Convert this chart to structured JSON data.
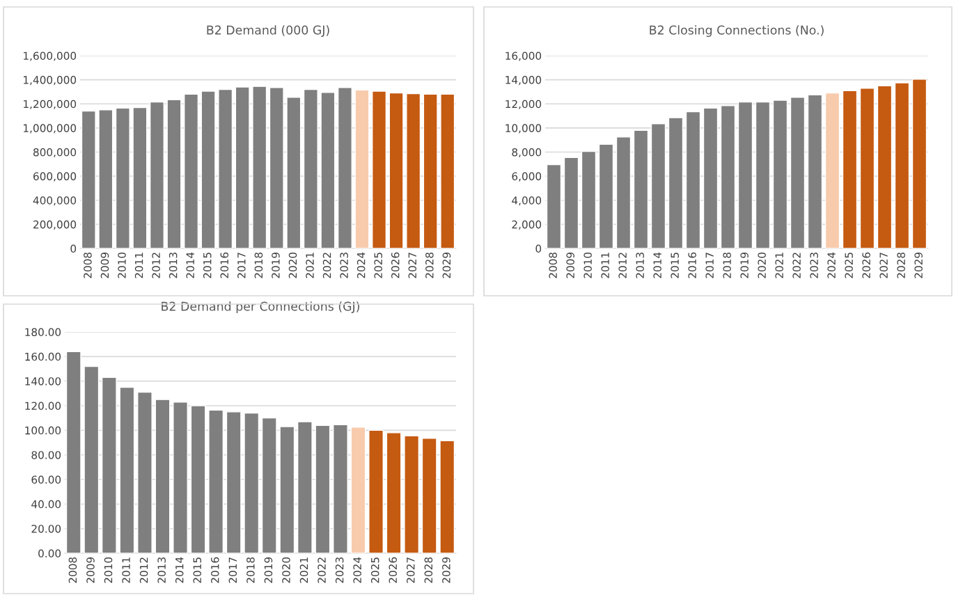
{
  "chart_data": [
    {
      "type": "bar",
      "title": "B2 Demand (000 GJ)",
      "categories": [
        "2008",
        "2009",
        "2010",
        "2011",
        "2012",
        "2013",
        "2014",
        "2015",
        "2016",
        "2017",
        "2018",
        "2019",
        "2020",
        "2021",
        "2022",
        "2023",
        "2024",
        "2025",
        "2026",
        "2027",
        "2028",
        "2029"
      ],
      "values": [
        1140000,
        1150000,
        1165000,
        1170000,
        1215000,
        1235000,
        1280000,
        1305000,
        1320000,
        1340000,
        1345000,
        1335000,
        1255000,
        1320000,
        1295000,
        1335000,
        1315000,
        1305000,
        1290000,
        1285000,
        1280000,
        1280000
      ],
      "colors": [
        "#7f7f7f",
        "#7f7f7f",
        "#7f7f7f",
        "#7f7f7f",
        "#7f7f7f",
        "#7f7f7f",
        "#7f7f7f",
        "#7f7f7f",
        "#7f7f7f",
        "#7f7f7f",
        "#7f7f7f",
        "#7f7f7f",
        "#7f7f7f",
        "#7f7f7f",
        "#7f7f7f",
        "#7f7f7f",
        "#f8cbad",
        "#c55a11",
        "#c55a11",
        "#c55a11",
        "#c55a11",
        "#c55a11"
      ],
      "ylim": [
        0,
        1600000
      ],
      "yticks": [
        0,
        {
          "value": 200000,
          "label": "200,000"
        },
        {
          "value": 400000,
          "label": "400,000"
        },
        {
          "value": 600000,
          "label": "600,000"
        },
        {
          "value": 800000,
          "label": "800,000"
        },
        {
          "value": 1000000,
          "label": "1,000,000"
        },
        {
          "value": 1200000,
          "label": "1,200,000"
        },
        {
          "value": 1400000,
          "label": "1,400,000"
        },
        {
          "value": 1600000,
          "label": "1,600,000"
        }
      ],
      "grid": "y",
      "legend": false
    },
    {
      "type": "bar",
      "title": "B2 Closing Connections (No.)",
      "categories": [
        "2008",
        "2009",
        "2010",
        "2011",
        "2012",
        "2013",
        "2014",
        "2015",
        "2016",
        "2017",
        "2018",
        "2019",
        "2020",
        "2021",
        "2022",
        "2023",
        "2024",
        "2025",
        "2026",
        "2027",
        "2028",
        "2029"
      ],
      "values": [
        6950,
        7550,
        8050,
        8650,
        9250,
        9800,
        10350,
        10850,
        11350,
        11650,
        11850,
        12150,
        12150,
        12300,
        12550,
        12750,
        12900,
        13100,
        13300,
        13500,
        13750,
        14050
      ],
      "colors": [
        "#7f7f7f",
        "#7f7f7f",
        "#7f7f7f",
        "#7f7f7f",
        "#7f7f7f",
        "#7f7f7f",
        "#7f7f7f",
        "#7f7f7f",
        "#7f7f7f",
        "#7f7f7f",
        "#7f7f7f",
        "#7f7f7f",
        "#7f7f7f",
        "#7f7f7f",
        "#7f7f7f",
        "#7f7f7f",
        "#f8cbad",
        "#c55a11",
        "#c55a11",
        "#c55a11",
        "#c55a11",
        "#c55a11"
      ],
      "ylim": [
        0,
        16000
      ],
      "yticks": [
        0,
        {
          "value": 2000,
          "label": "2,000"
        },
        {
          "value": 4000,
          "label": "4,000"
        },
        {
          "value": 6000,
          "label": "6,000"
        },
        {
          "value": 8000,
          "label": "8,000"
        },
        {
          "value": 10000,
          "label": "10,000"
        },
        {
          "value": 12000,
          "label": "12,000"
        },
        {
          "value": 14000,
          "label": "14,000"
        },
        {
          "value": 16000,
          "label": "16,000"
        }
      ],
      "grid": "y",
      "legend": false
    },
    {
      "type": "bar",
      "title": "B2 Demand per Connections (GJ)",
      "categories": [
        "2008",
        "2009",
        "2010",
        "2011",
        "2012",
        "2013",
        "2014",
        "2015",
        "2016",
        "2017",
        "2018",
        "2019",
        "2020",
        "2021",
        "2022",
        "2023",
        "2024",
        "2025",
        "2026",
        "2027",
        "2028",
        "2029"
      ],
      "values": [
        164,
        152,
        143,
        135,
        131,
        125,
        123,
        120,
        116.5,
        115,
        114,
        110,
        103,
        107,
        104,
        104.5,
        102.5,
        100,
        98,
        95.5,
        93.5,
        91.5
      ],
      "colors": [
        "#7f7f7f",
        "#7f7f7f",
        "#7f7f7f",
        "#7f7f7f",
        "#7f7f7f",
        "#7f7f7f",
        "#7f7f7f",
        "#7f7f7f",
        "#7f7f7f",
        "#7f7f7f",
        "#7f7f7f",
        "#7f7f7f",
        "#7f7f7f",
        "#7f7f7f",
        "#7f7f7f",
        "#7f7f7f",
        "#f8cbad",
        "#c55a11",
        "#c55a11",
        "#c55a11",
        "#c55a11",
        "#c55a11"
      ],
      "ylim": [
        0,
        180
      ],
      "yticks": [
        {
          "value": 0,
          "label": "0.00"
        },
        {
          "value": 20,
          "label": "20.00"
        },
        {
          "value": 40,
          "label": "40.00"
        },
        {
          "value": 60,
          "label": "60.00"
        },
        {
          "value": 80,
          "label": "80.00"
        },
        {
          "value": 100,
          "label": "100.00"
        },
        {
          "value": 120,
          "label": "120.00"
        },
        {
          "value": 140,
          "label": "140.00"
        },
        {
          "value": 160,
          "label": "160.00"
        },
        {
          "value": 180,
          "label": "180.00"
        }
      ],
      "grid": "y",
      "legend": false
    }
  ]
}
